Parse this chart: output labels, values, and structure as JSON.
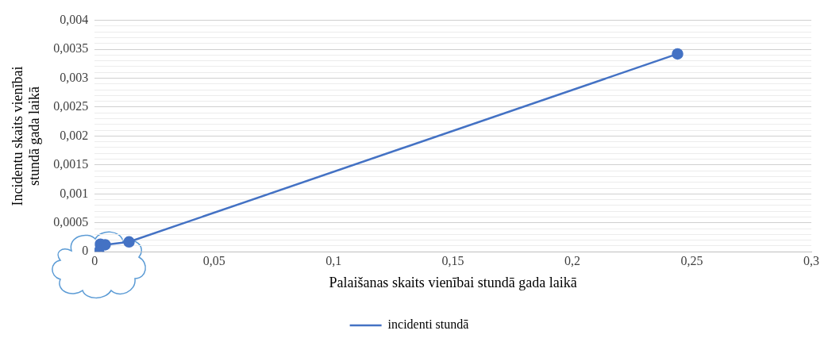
{
  "chart_data": {
    "type": "line",
    "xlabel": "Palaišanas skaits vienībai stundā gada laikā",
    "ylabel": "Incidentu skaits vienībai stundā gada laikā",
    "x": [
      0.0017,
      0.0024,
      0.0044,
      0.0144,
      0.244
    ],
    "series": [
      {
        "name": "incidenti stundā",
        "color": "#4472c4",
        "values": [
          0,
          0.00013,
          0.00012,
          0.00017,
          0.00342
        ]
      }
    ],
    "xlim": [
      0,
      0.3
    ],
    "xticks": [
      0,
      {
        "value": 0.05,
        "label": "0,05"
      },
      {
        "value": 0.1,
        "label": "0,1"
      },
      {
        "value": 0.15,
        "label": "0,15"
      },
      {
        "value": 0.2,
        "label": "0,2"
      },
      {
        "value": 0.25,
        "label": "0,25"
      },
      {
        "value": 0.3,
        "label": "0,3"
      }
    ],
    "ylim": [
      0,
      0.004
    ],
    "yticks": [
      0,
      {
        "value": 0.0001,
        "label": null
      },
      {
        "value": 0.0002,
        "label": null
      },
      {
        "value": 0.0003,
        "label": null
      },
      {
        "value": 0.0004,
        "label": null
      },
      {
        "value": 0.0005,
        "label": "0,0005"
      },
      {
        "value": 0.0006,
        "label": null
      },
      {
        "value": 0.0007,
        "label": null
      },
      {
        "value": 0.0008,
        "label": null
      },
      {
        "value": 0.0009,
        "label": null
      },
      {
        "value": 0.001,
        "label": "0,001"
      },
      {
        "value": 0.0011,
        "label": null
      },
      {
        "value": 0.0012,
        "label": null
      },
      {
        "value": 0.0013,
        "label": null
      },
      {
        "value": 0.0014,
        "label": null
      },
      {
        "value": 0.0015,
        "label": "0,0015"
      },
      {
        "value": 0.0016,
        "label": null
      },
      {
        "value": 0.0017,
        "label": null
      },
      {
        "value": 0.0018,
        "label": null
      },
      {
        "value": 0.0019,
        "label": null
      },
      {
        "value": 0.002,
        "label": "0,002"
      },
      {
        "value": 0.0021,
        "label": null
      },
      {
        "value": 0.0022,
        "label": null
      },
      {
        "value": 0.0023,
        "label": null
      },
      {
        "value": 0.0024,
        "label": null
      },
      {
        "value": 0.0025,
        "label": "0,0025"
      },
      {
        "value": 0.0026,
        "label": null
      },
      {
        "value": 0.0027,
        "label": null
      },
      {
        "value": 0.0028,
        "label": null
      },
      {
        "value": 0.0029,
        "label": null
      },
      {
        "value": 0.003,
        "label": "0,003"
      },
      {
        "value": 0.0031,
        "label": null
      },
      {
        "value": 0.0032,
        "label": null
      },
      {
        "value": 0.0033,
        "label": null
      },
      {
        "value": 0.0034,
        "label": null
      },
      {
        "value": 0.0035,
        "label": "0,0035"
      },
      {
        "value": 0.0036,
        "label": null
      },
      {
        "value": 0.0037,
        "label": null
      },
      {
        "value": 0.0038,
        "label": null
      },
      {
        "value": 0.0039,
        "label": null
      },
      {
        "value": 0.004,
        "label": "0,004"
      }
    ],
    "grid": "y",
    "legend": "bottom",
    "marker": "circle",
    "line_style": "solid"
  }
}
